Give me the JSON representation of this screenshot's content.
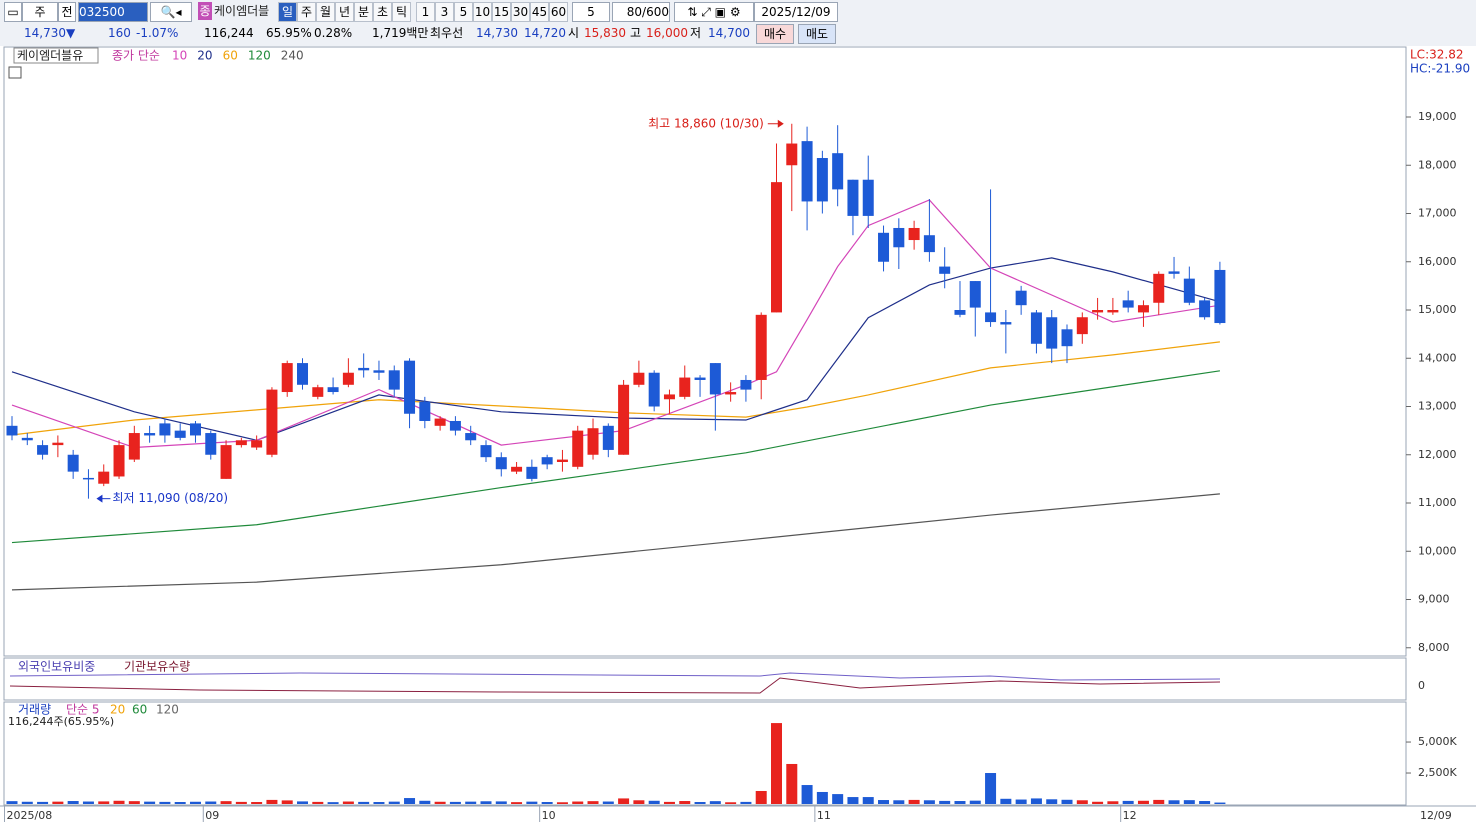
{
  "toolbar": {
    "period_label": "주",
    "prev": "전",
    "code": "032500",
    "market_badge": "종",
    "name": "케이엠더블",
    "period_tabs": [
      "일",
      "주",
      "월",
      "년",
      "분",
      "초",
      "틱"
    ],
    "intervals": [
      "1",
      "3",
      "5",
      "10",
      "15",
      "30",
      "45",
      "60"
    ],
    "count": "5",
    "range": "80/600",
    "date": "2025/12/09"
  },
  "quote": {
    "price": "14,730",
    "direction": "▼",
    "change": "160",
    "change_pct": "-1.07%",
    "volume": "116,244",
    "volume_ratio": "65.95%",
    "turnover": "0.28%",
    "amount": "1,719백만",
    "best_label": "최우선",
    "ask": "14,730",
    "bid": "14,720",
    "open_label": "시",
    "open": "15,830",
    "high_label": "고",
    "high": "16,000",
    "low_label": "저",
    "low": "14,700",
    "buy": "매수",
    "sell": "매도"
  },
  "holdings_pane": {
    "legend": [
      "외국인보유비중",
      "기관보유수량"
    ],
    "tick": "0"
  },
  "chart_data": [
    {
      "type": "candlestick",
      "title": "케이엠더블유",
      "indicator_label": "종가 단순",
      "categories": [
        "2025/08",
        null,
        null,
        null,
        null,
        null,
        null,
        null,
        null,
        null,
        null,
        null,
        null,
        "09",
        null,
        null,
        null,
        null,
        null,
        null,
        null,
        null,
        null,
        null,
        null,
        null,
        null,
        null,
        null,
        null,
        null,
        null,
        null,
        null,
        null,
        "10",
        null,
        null,
        null,
        null,
        null,
        null,
        null,
        null,
        null,
        null,
        null,
        null,
        null,
        null,
        null,
        null,
        null,
        "11",
        null,
        null,
        null,
        null,
        null,
        null,
        null,
        null,
        null,
        null,
        null,
        null,
        null,
        null,
        null,
        null,
        null,
        null,
        null,
        "12",
        null,
        null,
        null,
        null,
        null,
        null
      ],
      "series": {
        "open": [
          12600,
          12350,
          12200,
          12200,
          12000,
          11520,
          11400,
          11550,
          11900,
          12450,
          12650,
          12500,
          12650,
          12450,
          11500,
          12200,
          12150,
          12000,
          13300,
          13900,
          13200,
          13400,
          13450,
          13800,
          13750,
          13750,
          13950,
          13100,
          12600,
          12700,
          12450,
          12200,
          11950,
          11650,
          11750,
          11950,
          11850,
          11750,
          12000,
          12600,
          12000,
          13450,
          13700,
          13150,
          13200,
          13600,
          13900,
          13250,
          13550,
          13550,
          14950,
          18000,
          18500,
          18150,
          18250,
          17700,
          17700,
          16600,
          16700,
          16450,
          16550,
          15900,
          15000,
          15600,
          14950,
          14750,
          15400,
          14950,
          14850,
          14600,
          14500,
          14950,
          14950,
          15200,
          14950,
          15150,
          15800,
          15650,
          15200,
          15830
        ],
        "high": [
          12800,
          12450,
          12300,
          12400,
          12100,
          11700,
          11800,
          12300,
          12600,
          12600,
          12750,
          12650,
          12700,
          12500,
          12300,
          12350,
          12400,
          13400,
          13950,
          14000,
          13450,
          13600,
          14000,
          14100,
          13950,
          13850,
          14000,
          13200,
          12800,
          12800,
          12600,
          12300,
          12050,
          11850,
          11900,
          12000,
          12100,
          12600,
          12750,
          12650,
          13550,
          13950,
          13750,
          13350,
          13850,
          13650,
          13900,
          13500,
          13650,
          14950,
          18450,
          18860,
          18800,
          18300,
          18830,
          17700,
          18200,
          16750,
          16900,
          16850,
          17300,
          16300,
          15600,
          15600,
          17500,
          15000,
          15500,
          15000,
          15000,
          14700,
          14950,
          15250,
          15250,
          15400,
          15200,
          15800,
          16100,
          15900,
          15250,
          16000
        ],
        "low": [
          12300,
          12200,
          11900,
          11950,
          11500,
          11090,
          11350,
          11500,
          11850,
          12250,
          12250,
          12300,
          12250,
          11900,
          11500,
          12150,
          12100,
          11950,
          13200,
          13350,
          13150,
          13250,
          13400,
          13600,
          13550,
          13200,
          12550,
          12550,
          12500,
          12400,
          12200,
          11850,
          11550,
          11600,
          11450,
          11700,
          11650,
          11700,
          11900,
          11950,
          12000,
          13400,
          12900,
          12850,
          13150,
          13200,
          12500,
          13100,
          13100,
          13150,
          14950,
          17050,
          16650,
          17000,
          17150,
          16550,
          16700,
          15800,
          15850,
          16250,
          16000,
          15450,
          14850,
          14450,
          14650,
          14100,
          14900,
          14100,
          13900,
          13900,
          14300,
          14800,
          14900,
          14950,
          14650,
          14900,
          15650,
          15100,
          14800,
          14700
        ],
        "close": [
          12400,
          12300,
          12000,
          12250,
          11650,
          11500,
          11650,
          12200,
          12450,
          12400,
          12400,
          12350,
          12400,
          12000,
          12200,
          12300,
          12300,
          13350,
          13900,
          13450,
          13400,
          13300,
          13700,
          13750,
          13700,
          13350,
          12850,
          12700,
          12750,
          12500,
          12300,
          11950,
          11700,
          11750,
          11500,
          11800,
          11900,
          12500,
          12550,
          12100,
          13450,
          13700,
          13000,
          13250,
          13600,
          13550,
          13250,
          13300,
          13350,
          14900,
          17650,
          18450,
          17250,
          17250,
          17500,
          16950,
          16950,
          16000,
          16300,
          16700,
          16200,
          15750,
          14900,
          15050,
          14750,
          14700,
          15100,
          14300,
          14200,
          14250,
          14850,
          15000,
          15000,
          15050,
          15100,
          15750,
          15750,
          15150,
          14850,
          14730
        ]
      },
      "up_color": "#e8231e",
      "down_color": "#1d5ad6",
      "lines": [
        {
          "name": "10",
          "color": "#d445b8",
          "x": [
            0,
            8,
            16,
            24,
            32,
            40,
            48,
            50,
            52,
            54,
            56,
            60,
            64,
            72,
            79
          ],
          "values": [
            13030,
            12150,
            12300,
            13350,
            12200,
            12500,
            13450,
            13720,
            14800,
            15900,
            16750,
            17280,
            15870,
            14750,
            15100
          ]
        },
        {
          "name": "20",
          "color": "#1f2f8a",
          "x": [
            0,
            8,
            16,
            24,
            32,
            40,
            48,
            52,
            56,
            60,
            64,
            68,
            72,
            79
          ],
          "values": [
            13720,
            12890,
            12300,
            13240,
            12890,
            12760,
            12720,
            13140,
            14840,
            15520,
            15870,
            16080,
            15790,
            15170
          ]
        },
        {
          "name": "60",
          "color": "#f0a30a",
          "x": [
            0,
            8,
            16,
            24,
            32,
            40,
            48,
            52,
            56,
            64,
            72,
            79
          ],
          "values": [
            12410,
            12720,
            12930,
            13140,
            13010,
            12870,
            12780,
            12990,
            13240,
            13800,
            14070,
            14340
          ]
        },
        {
          "name": "120",
          "color": "#1f8a3a",
          "x": [
            0,
            16,
            32,
            48,
            64,
            79
          ],
          "values": [
            10180,
            10550,
            11320,
            12040,
            13030,
            13740
          ]
        },
        {
          "name": "240",
          "color": "#555555",
          "x": [
            0,
            16,
            32,
            48,
            64,
            79
          ],
          "values": [
            9200,
            9360,
            9720,
            10230,
            10750,
            11190
          ]
        }
      ],
      "ylim": [
        7850,
        20430
      ],
      "yticks": [
        {
          "value": 8000,
          "label": "8,000"
        },
        {
          "value": 9000,
          "label": "9,000"
        },
        {
          "value": 10000,
          "label": "10,000"
        },
        {
          "value": 11000,
          "label": "11,000"
        },
        {
          "value": 12000,
          "label": "12,000"
        },
        {
          "value": 13000,
          "label": "13,000"
        },
        {
          "value": 14000,
          "label": "14,000"
        },
        {
          "value": 15000,
          "label": "15,000"
        },
        {
          "value": 16000,
          "label": "16,000"
        },
        {
          "value": 17000,
          "label": "17,000"
        },
        {
          "value": 18000,
          "label": "18,000"
        },
        {
          "value": 19000,
          "label": "19,000"
        }
      ],
      "corner_labels": [
        "LC:32.82",
        "HC:-21.90"
      ],
      "annotations": [
        {
          "text": "최고 18,860 (10/30)",
          "value": 18860,
          "color": "#d8201a"
        },
        {
          "text": "최저 11,090 (08/20)",
          "value": 11090,
          "color": "#1a36c8"
        }
      ],
      "end_date": "12/09"
    },
    {
      "type": "bar",
      "legend_title": "거래량",
      "legend_indicator": "단순 5",
      "legend_periods": [
        "20",
        "60",
        "120"
      ],
      "note": "116,244주(65.95%)",
      "values": [
        230,
        180,
        170,
        190,
        240,
        200,
        210,
        260,
        230,
        190,
        170,
        160,
        180,
        200,
        230,
        170,
        160,
        330,
        290,
        210,
        170,
        150,
        200,
        170,
        160,
        190,
        480,
        260,
        180,
        170,
        190,
        220,
        210,
        150,
        190,
        160,
        140,
        200,
        230,
        200,
        450,
        300,
        260,
        170,
        240,
        160,
        230,
        140,
        170,
        1050,
        6530,
        3230,
        1530,
        970,
        800,
        560,
        560,
        320,
        300,
        330,
        300,
        250,
        240,
        270,
        2500,
        420,
        360,
        450,
        380,
        340,
        300,
        180,
        220,
        250,
        260,
        330,
        300,
        310,
        240,
        116.244
      ],
      "ylim": [
        0,
        8150
      ],
      "yticks": [
        {
          "value": 2500,
          "label": "2,500K"
        },
        {
          "value": 5000,
          "label": "5,000K"
        }
      ]
    }
  ]
}
